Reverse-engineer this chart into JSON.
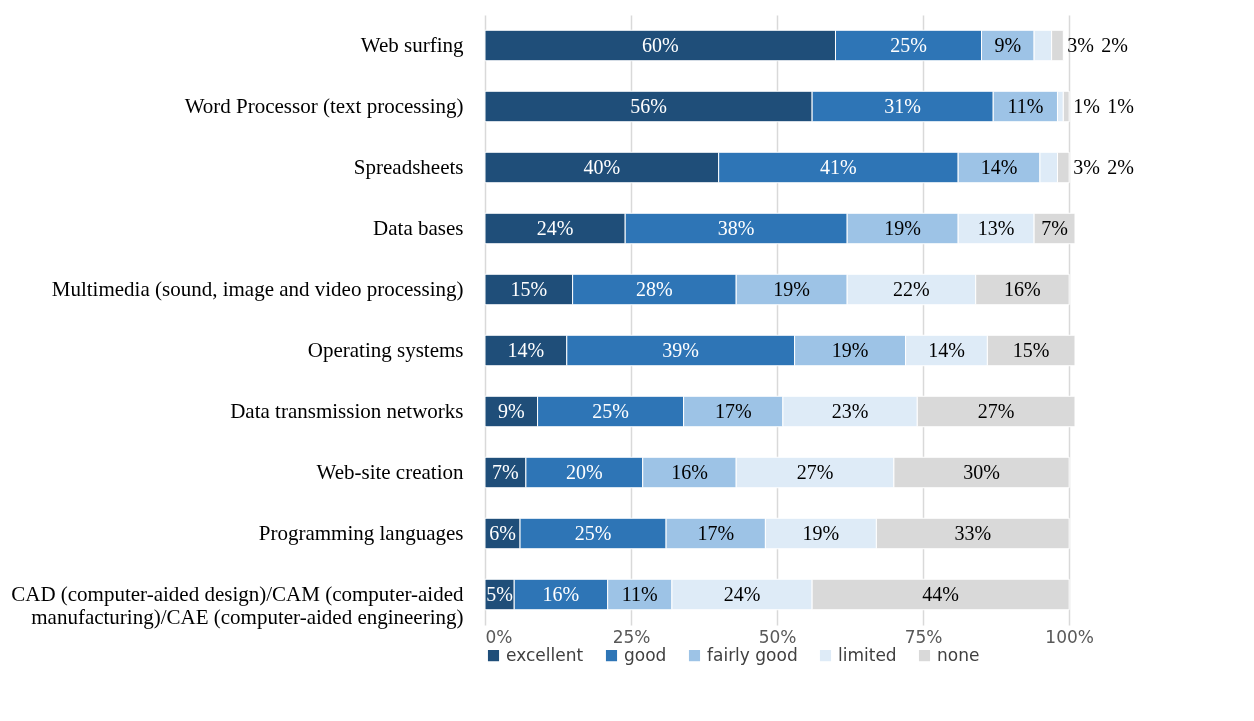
{
  "chart_data": {
    "type": "bar",
    "orientation": "horizontal",
    "stacked": true,
    "grid": "x",
    "legend": "bottom",
    "categories": [
      "Web surfing",
      "Word Processor (text processing)",
      "Spreadsheets",
      "Data bases",
      "Multimedia (sound, image and video processing)",
      "Operating systems",
      "Data transmission networks",
      "Web-site creation",
      "Programming languages",
      "CAD (computer-aided design)/CAM (computer-aided manufacturing)/CAE (computer-aided engineering)"
    ],
    "xlim": [
      0,
      101
    ],
    "xticks": [
      {
        "value": 0,
        "label": "0%"
      },
      {
        "value": 25,
        "label": "25%"
      },
      {
        "value": 50,
        "label": "50%"
      },
      {
        "value": 75,
        "label": "75%"
      },
      {
        "value": 100,
        "label": "100%"
      }
    ],
    "series": [
      {
        "name": "excellent",
        "color": "#1f4e79",
        "values": [
          60,
          56,
          40,
          24,
          15,
          14,
          9,
          7,
          6,
          5
        ],
        "value_labels": [
          "60%",
          "56%",
          "40%",
          "24%",
          "15%",
          "14%",
          "9%",
          "7%",
          "6%",
          "5%"
        ]
      },
      {
        "name": "good",
        "color": "#2e75b6",
        "values": [
          25,
          31,
          41,
          38,
          28,
          39,
          25,
          20,
          25,
          16
        ],
        "value_labels": [
          "25%",
          "31%",
          "41%",
          "38%",
          "28%",
          "39%",
          "25%",
          "20%",
          "25%",
          "16%"
        ]
      },
      {
        "name": "fairly good",
        "color": "#9dc3e6",
        "values": [
          9,
          11,
          14,
          19,
          19,
          19,
          17,
          16,
          17,
          11
        ],
        "value_labels": [
          "9%",
          "11%",
          "14%",
          "19%",
          "19%",
          "19%",
          "17%",
          "16%",
          "17%",
          "11%"
        ]
      },
      {
        "name": "limited",
        "color": "#deebf7",
        "values": [
          3,
          1,
          3,
          13,
          22,
          14,
          23,
          27,
          19,
          24
        ],
        "value_labels": [
          "3%",
          "1%",
          "3%",
          "13%",
          "22%",
          "14%",
          "23%",
          "27%",
          "19%",
          "24%"
        ]
      },
      {
        "name": "none",
        "color": "#d9d9d9",
        "values": [
          2,
          1,
          2,
          7,
          16,
          15,
          27,
          30,
          33,
          44
        ],
        "value_labels": [
          "2%",
          "1%",
          "2%",
          "7%",
          "16%",
          "15%",
          "27%",
          "30%",
          "33%",
          "44%"
        ]
      }
    ]
  }
}
